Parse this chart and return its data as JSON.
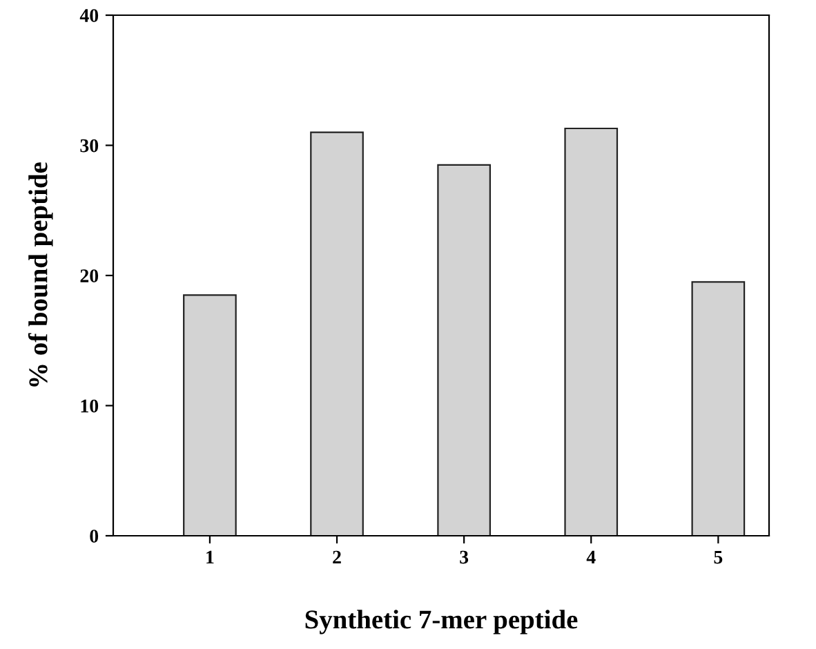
{
  "chart_data": {
    "type": "bar",
    "xlabel": "Synthetic 7-mer peptide",
    "ylabel": "% of bound peptide",
    "categories": [
      "1",
      "2",
      "3",
      "4",
      "5"
    ],
    "values": [
      18.5,
      31.0,
      28.5,
      31.3,
      19.5
    ],
    "color": "#d3d3d3",
    "ylim": [
      0,
      40
    ],
    "yticks": [
      0,
      10,
      20,
      30,
      40
    ],
    "grid": false
  }
}
